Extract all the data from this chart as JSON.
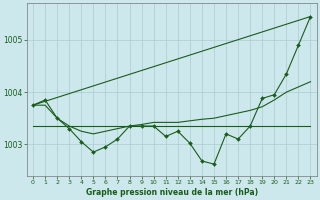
{
  "background_color": "#cce8ec",
  "plot_bg_color": "#cce8ec",
  "grid_color": "#aaccd0",
  "line_color": "#1a5c1a",
  "text_color": "#1a5c1a",
  "xlabel": "Graphe pression niveau de la mer (hPa)",
  "ylim": [
    1002.4,
    1005.7
  ],
  "yticks": [
    1003,
    1004,
    1005
  ],
  "xlim": [
    -0.5,
    23.5
  ],
  "xticks": [
    0,
    1,
    2,
    3,
    4,
    5,
    6,
    7,
    8,
    9,
    10,
    11,
    12,
    13,
    14,
    15,
    16,
    17,
    18,
    19,
    20,
    21,
    22,
    23
  ],
  "series_flat": [
    1003.35,
    1003.35,
    1003.35,
    1003.35,
    1003.35,
    1003.35,
    1003.35,
    1003.35,
    1003.35,
    1003.35,
    1003.35,
    1003.35,
    1003.35,
    1003.35,
    1003.35,
    1003.35,
    1003.35,
    1003.35,
    1003.35,
    1003.35,
    1003.35,
    1003.35,
    1003.35,
    1003.35
  ],
  "series_smooth": [
    1003.75,
    1003.75,
    1003.5,
    1003.35,
    1003.25,
    1003.2,
    1003.25,
    1003.3,
    1003.35,
    1003.38,
    1003.42,
    1003.42,
    1003.42,
    1003.45,
    1003.48,
    1003.5,
    1003.55,
    1003.6,
    1003.65,
    1003.72,
    1003.85,
    1004.0,
    1004.1,
    1004.2
  ],
  "trend_x": [
    0,
    23
  ],
  "trend_y": [
    1003.75,
    1005.45
  ],
  "series_markers": [
    1003.75,
    1003.85,
    1003.5,
    1003.3,
    1003.05,
    1002.85,
    1002.95,
    1003.1,
    1003.35,
    1003.35,
    1003.35,
    1003.15,
    1003.25,
    1003.02,
    1002.68,
    1002.62,
    1003.2,
    1003.1,
    1003.35,
    1003.88,
    1003.95,
    1004.35,
    1004.9,
    1005.45
  ]
}
